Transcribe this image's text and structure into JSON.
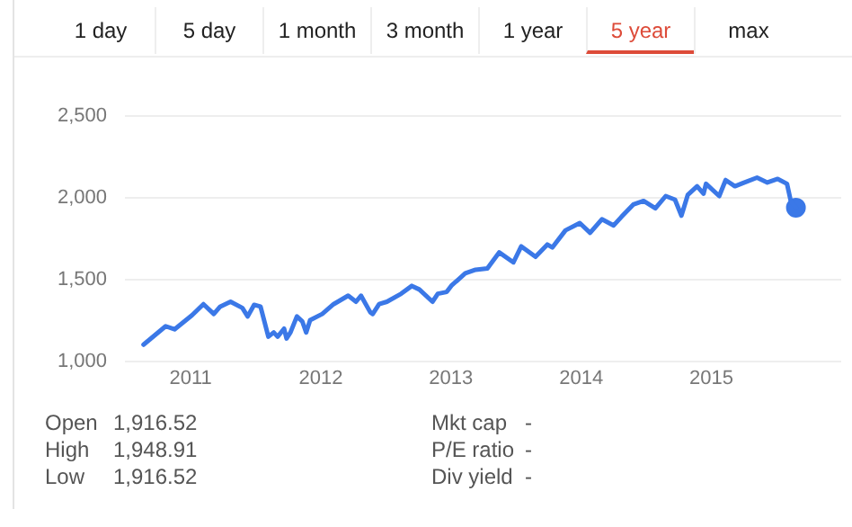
{
  "chart_data": {
    "type": "line",
    "annotations": [
      "1 day",
      "5 day",
      "1 month",
      "3 month",
      "1 year",
      "5 year",
      "max",
      "Open",
      "1,916.52",
      "High",
      "1,948.91",
      "Low",
      "1,916.52",
      "Mkt cap",
      "-",
      "P/E ratio",
      "-",
      "Div yield",
      "-"
    ],
    "xlim": [
      "2010-07-01",
      "2015-12-31"
    ],
    "xticks": [
      {
        "value": "2011-01-01",
        "label": "2011"
      },
      {
        "value": "2012-01-01",
        "label": "2012"
      },
      {
        "value": "2013-01-01",
        "label": "2013"
      },
      {
        "value": "2014-01-01",
        "label": "2014"
      },
      {
        "value": "2015-01-01",
        "label": "2015"
      }
    ],
    "ylim": [
      1000,
      2500
    ],
    "yticks": [
      {
        "value": 1000,
        "label": "1,000"
      },
      {
        "value": 1500,
        "label": "1,500"
      },
      {
        "value": 2000,
        "label": "2,000"
      },
      {
        "value": 2500,
        "label": "2,500"
      }
    ],
    "grid": "y",
    "legend": false,
    "marker": "none",
    "line_style": "solid",
    "series": [
      {
        "type": "line",
        "color": "#3b78e7",
        "x": [
          "2010-08-22",
          "2010-10-23",
          "2010-11-17",
          "2011-01-05",
          "2011-02-06",
          "2011-03-07",
          "2011-03-25",
          "2011-04-23",
          "2011-05-26",
          "2011-06-10",
          "2011-06-28",
          "2011-07-16",
          "2011-08-07",
          "2011-08-22",
          "2011-09-02",
          "2011-09-20",
          "2011-09-27",
          "2011-10-08",
          "2011-10-26",
          "2011-11-10",
          "2011-11-21",
          "2011-12-02",
          "2012-01-05",
          "2012-02-06",
          "2012-03-18",
          "2012-04-09",
          "2012-04-23",
          "2012-05-19",
          "2012-05-26",
          "2012-06-13",
          "2012-07-05",
          "2012-08-14",
          "2012-09-13",
          "2012-10-04",
          "2012-11-10",
          "2012-11-25",
          "2012-12-20",
          "2013-01-02",
          "2013-02-10",
          "2013-03-11",
          "2013-04-13",
          "2013-05-16",
          "2013-06-25",
          "2013-07-17",
          "2013-08-26",
          "2013-09-28",
          "2013-10-12",
          "2013-11-18",
          "2013-12-28",
          "2014-01-26",
          "2014-02-28",
          "2014-04-02",
          "2014-04-24",
          "2014-05-27",
          "2014-06-25",
          "2014-07-28",
          "2014-08-26",
          "2014-09-21",
          "2014-10-09",
          "2014-10-27",
          "2014-11-22",
          "2014-12-10",
          "2014-12-17",
          "2015-01-23",
          "2015-02-10",
          "2015-03-08",
          "2015-03-30",
          "2015-05-09",
          "2015-06-07",
          "2015-07-06",
          "2015-08-01",
          "2015-08-12",
          "2015-08-26"
        ],
        "values": [
          1101,
          1214,
          1195,
          1281,
          1349,
          1289,
          1334,
          1364,
          1326,
          1274,
          1345,
          1334,
          1150,
          1176,
          1150,
          1199,
          1139,
          1176,
          1274,
          1244,
          1176,
          1251,
          1289,
          1349,
          1401,
          1364,
          1401,
          1300,
          1289,
          1349,
          1364,
          1413,
          1461,
          1439,
          1364,
          1413,
          1424,
          1462,
          1538,
          1560,
          1568,
          1666,
          1605,
          1703,
          1639,
          1714,
          1696,
          1801,
          1846,
          1786,
          1869,
          1831,
          1884,
          1959,
          1981,
          1936,
          2011,
          1989,
          1891,
          2019,
          2071,
          2026,
          2086,
          2011,
          2109,
          2071,
          2090,
          2124,
          2094,
          2116,
          2086,
          1977,
          1940
        ]
      },
      {
        "type": "scatter",
        "color": "#3b78e7",
        "marker": "circle",
        "x": [
          "2015-08-26"
        ],
        "values": [
          1940
        ]
      }
    ]
  }
}
